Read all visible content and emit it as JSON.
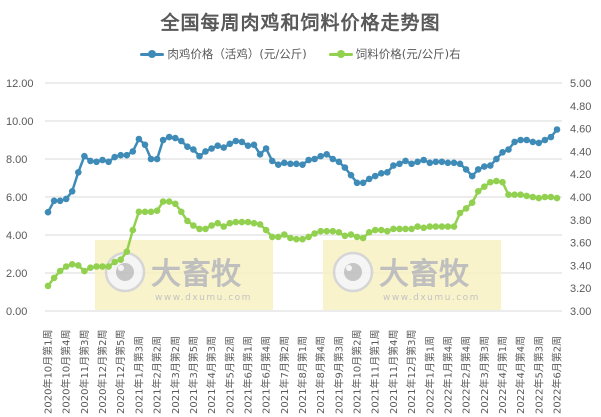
{
  "chart_data": {
    "type": "line",
    "title": "全国每周肉鸡和饲料价格走势图",
    "xlabel": "",
    "ylabel": "",
    "ylim": [
      0,
      12
    ],
    "y2lim": [
      3.0,
      5.0
    ],
    "grid": true,
    "legend_position": "top",
    "left_ticks": [
      "12.00",
      "10.00",
      "8.00",
      "6.00",
      "4.00",
      "2.00",
      "0.00"
    ],
    "right_ticks": [
      "5.00",
      "4.80",
      "4.60",
      "4.40",
      "4.20",
      "4.00",
      "3.80",
      "3.60",
      "3.40",
      "3.20",
      "3.00"
    ],
    "categories": [
      "2020年10月第1周",
      "2020年10月第4周",
      "2020年11月第3周",
      "2020年12月第2周",
      "2020年12月第5周",
      "2021年1月第3周",
      "2021年2月第2周",
      "2021年3月第2周",
      "2021年3月第5周",
      "2021年4月第3周",
      "2021年5月第2周",
      "2021年6月第1周",
      "2021年6月第4周",
      "2021年7月第2周",
      "2021年8月第1周",
      "2021年8月第4周",
      "2021年9月第3周",
      "2021年10月第2周",
      "2021年11月第1周",
      "2021年11月第4周",
      "2021年12月第3周",
      "2022年1月第1周",
      "2022年1月第4周",
      "2022年2月第4周",
      "2022年3月第3周",
      "2022年4月第1周",
      "2022年4月第4周",
      "2022年5月第3周",
      "2022年6月第2周"
    ],
    "label_every": 3,
    "series": [
      {
        "name": "肉鸡价格（活鸡）(元/公斤)",
        "axis": "left",
        "color": "#3f8bb8",
        "values": [
          5.2,
          5.8,
          5.8,
          5.9,
          6.3,
          7.3,
          8.15,
          7.9,
          7.85,
          7.95,
          7.85,
          8.1,
          8.2,
          8.2,
          8.4,
          9.05,
          8.75,
          8.0,
          8.0,
          9.0,
          9.15,
          9.1,
          8.95,
          8.65,
          8.5,
          8.15,
          8.4,
          8.55,
          8.7,
          8.6,
          8.8,
          8.95,
          8.9,
          8.7,
          8.75,
          8.25,
          8.55,
          7.9,
          7.7,
          7.8,
          7.75,
          7.75,
          7.7,
          7.95,
          8.0,
          8.15,
          8.25,
          8.0,
          7.85,
          7.55,
          7.15,
          6.75,
          6.75,
          6.95,
          7.1,
          7.25,
          7.3,
          7.65,
          7.75,
          7.9,
          7.75,
          7.85,
          7.95,
          7.8,
          7.85,
          7.85,
          7.8,
          7.8,
          7.75,
          7.45,
          7.1,
          7.45,
          7.6,
          7.65,
          8.0,
          8.35,
          8.5,
          8.9,
          9.0,
          9.0,
          8.9,
          8.85,
          9.0,
          9.15,
          9.55
        ]
      },
      {
        "name": "饲料价格(元/公斤)右",
        "axis": "right",
        "color": "#92d050",
        "values": [
          3.22,
          3.29,
          3.35,
          3.39,
          3.41,
          3.4,
          3.35,
          3.38,
          3.39,
          3.39,
          3.39,
          3.43,
          3.45,
          3.52,
          3.71,
          3.87,
          3.87,
          3.87,
          3.88,
          3.96,
          3.96,
          3.94,
          3.87,
          3.79,
          3.75,
          3.72,
          3.72,
          3.75,
          3.77,
          3.74,
          3.77,
          3.78,
          3.78,
          3.78,
          3.77,
          3.76,
          3.71,
          3.65,
          3.65,
          3.67,
          3.64,
          3.63,
          3.63,
          3.65,
          3.68,
          3.7,
          3.7,
          3.7,
          3.69,
          3.66,
          3.67,
          3.65,
          3.64,
          3.69,
          3.71,
          3.71,
          3.7,
          3.72,
          3.72,
          3.72,
          3.72,
          3.74,
          3.73,
          3.74,
          3.74,
          3.74,
          3.74,
          3.74,
          3.86,
          3.9,
          3.95,
          4.05,
          4.09,
          4.13,
          4.14,
          4.13,
          4.02,
          4.02,
          4.02,
          4.01,
          4.0,
          3.99,
          4.0,
          4.0,
          3.99
        ]
      }
    ]
  },
  "watermark": {
    "brand": "大畜牧",
    "url": "www.dxumu.com"
  }
}
